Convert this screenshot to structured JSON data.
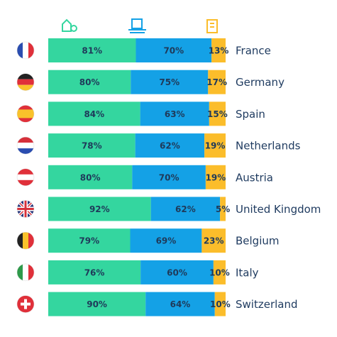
{
  "chart_data": {
    "type": "bar",
    "orientation": "horizontal",
    "stacked": true,
    "categories": [
      "France",
      "Germany",
      "Spain",
      "Netherlands",
      "Austria",
      "United Kingdom",
      "Belgium",
      "Italy",
      "Switzerland"
    ],
    "series": [
      {
        "color": "#34d69f",
        "values": [
          81,
          80,
          84,
          78,
          80,
          92,
          79,
          76,
          90
        ],
        "value_labels": [
          "81%",
          "80%",
          "84%",
          "78%",
          "80%",
          "92%",
          "79%",
          "76%",
          "90%"
        ]
      },
      {
        "color": "#14a1e6",
        "values": [
          70,
          75,
          63,
          62,
          70,
          62,
          69,
          60,
          64
        ],
        "value_labels": [
          "70%",
          "75%",
          "63%",
          "62%",
          "70%",
          "62%",
          "69%",
          "60%",
          "64%"
        ]
      },
      {
        "color": "#fbbd2b",
        "values": [
          13,
          17,
          15,
          19,
          19,
          5,
          23,
          10,
          10
        ],
        "value_labels": [
          "13%",
          "17%",
          "15%",
          "19%",
          "19%",
          "5%",
          "23%",
          "10%",
          "10%"
        ]
      }
    ]
  }
}
